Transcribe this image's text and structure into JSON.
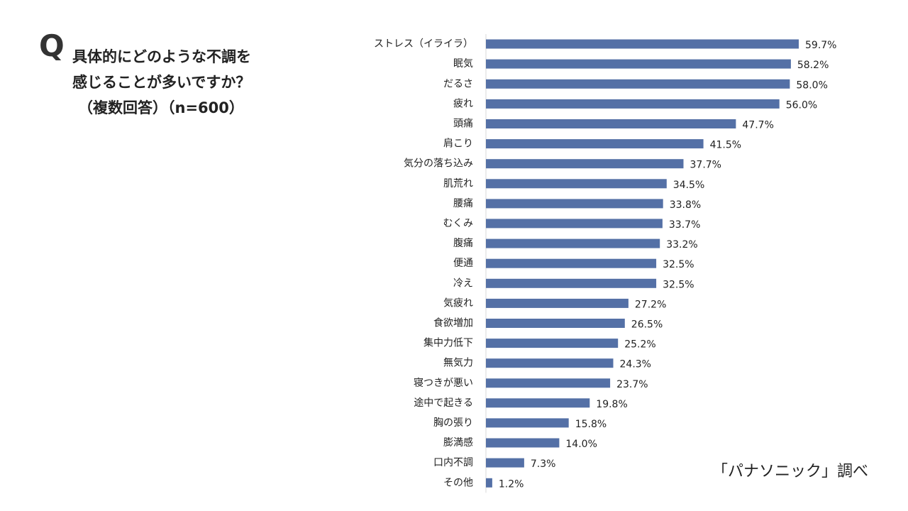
{
  "question": {
    "mark": "Q",
    "line1": "具体的にどのような不調を",
    "line2": "感じることが多いですか？",
    "line3": "（複数回答）（n=600）"
  },
  "source": "「パナソニック」調べ",
  "colors": {
    "bar": "#5470a6",
    "axis": "#d9d9d9"
  },
  "chart_data": {
    "type": "bar",
    "orientation": "horizontal",
    "title": "具体的にどのような不調を感じることが多いですか？（複数回答）（n=600）",
    "xlabel": "",
    "ylabel": "",
    "xlim": [
      0,
      60
    ],
    "unit": "%",
    "grid": false,
    "categories": [
      "ストレス（イライラ）",
      "眠気",
      "だるさ",
      "疲れ",
      "頭痛",
      "肩こり",
      "気分の落ち込み",
      "肌荒れ",
      "腰痛",
      "むくみ",
      "腹痛",
      "便通",
      "冷え",
      "気疲れ",
      "食欲増加",
      "集中力低下",
      "無気力",
      "寝つきが悪い",
      "途中で起きる",
      "胸の張り",
      "膨満感",
      "口内不調",
      "その他"
    ],
    "values": [
      59.7,
      58.2,
      58.0,
      56.0,
      47.7,
      41.5,
      37.7,
      34.5,
      33.8,
      33.7,
      33.2,
      32.5,
      32.5,
      27.2,
      26.5,
      25.2,
      24.3,
      23.7,
      19.8,
      15.8,
      14.0,
      7.3,
      1.2
    ],
    "labels": [
      "59.7%",
      "58.2%",
      "58.0%",
      "56.0%",
      "47.7%",
      "41.5%",
      "37.7%",
      "34.5%",
      "33.8%",
      "33.7%",
      "33.2%",
      "32.5%",
      "32.5%",
      "27.2%",
      "26.5%",
      "25.2%",
      "24.3%",
      "23.7%",
      "19.8%",
      "15.8%",
      "14.0%",
      "7.3%",
      "1.2%"
    ]
  }
}
